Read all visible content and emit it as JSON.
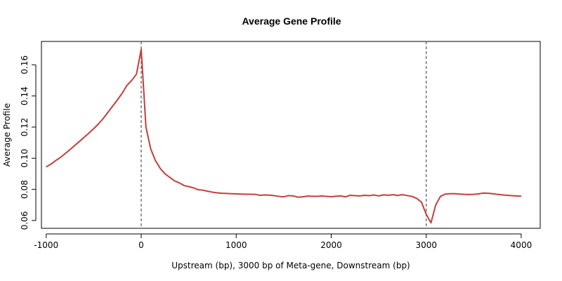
{
  "chart_data": {
    "type": "line",
    "title": "Average Gene Profile",
    "xlabel": "Upstream (bp), 3000 bp of Meta-gene, Downstream (bp)",
    "ylabel": "Average Profile",
    "xlim": [
      -1050,
      4200
    ],
    "ylim": [
      0.055,
      0.175
    ],
    "x_ticks": [
      -1000,
      0,
      1000,
      2000,
      3000,
      4000
    ],
    "x_tick_labels": [
      "-1000",
      "0",
      "1000",
      "2000",
      "3000",
      "4000"
    ],
    "y_ticks": [
      0.06,
      0.08,
      0.1,
      0.12,
      0.14,
      0.16
    ],
    "y_tick_labels": [
      "0.06",
      "0.08",
      "0.10",
      "0.12",
      "0.14",
      "0.16"
    ],
    "vlines": [
      0,
      3000
    ],
    "line_color": "#c0403c",
    "vline_color": "#555555",
    "grid": false,
    "series": [
      {
        "x": [
          -1000,
          -950,
          -900,
          -850,
          -800,
          -750,
          -700,
          -650,
          -600,
          -550,
          -500,
          -450,
          -400,
          -350,
          -300,
          -250,
          -200,
          -150,
          -100,
          -50,
          0,
          50,
          100,
          150,
          200,
          250,
          300,
          350,
          400,
          450,
          500,
          550,
          600,
          650,
          700,
          750,
          800,
          850,
          900,
          950,
          1000,
          1050,
          1100,
          1150,
          1200,
          1250,
          1300,
          1350,
          1400,
          1450,
          1500,
          1550,
          1600,
          1650,
          1700,
          1750,
          1800,
          1850,
          1900,
          1950,
          2000,
          2050,
          2100,
          2150,
          2200,
          2250,
          2300,
          2350,
          2400,
          2450,
          2500,
          2550,
          2600,
          2650,
          2700,
          2750,
          2800,
          2850,
          2900,
          2950,
          3000,
          3050,
          3100,
          3150,
          3200,
          3250,
          3300,
          3350,
          3400,
          3450,
          3500,
          3550,
          3600,
          3650,
          3700,
          3750,
          3800,
          3850,
          3900,
          3950,
          4000
        ],
        "y": [
          0.0945,
          0.0962,
          0.0985,
          0.1005,
          0.103,
          0.1055,
          0.1082,
          0.1108,
          0.1135,
          0.1162,
          0.119,
          0.122,
          0.1255,
          0.1295,
          0.1335,
          0.1375,
          0.1418,
          0.1468,
          0.15,
          0.154,
          0.17,
          0.12,
          0.106,
          0.0985,
          0.0935,
          0.09,
          0.0878,
          0.0855,
          0.0842,
          0.0825,
          0.0818,
          0.081,
          0.0798,
          0.0795,
          0.0788,
          0.0782,
          0.0778,
          0.0775,
          0.0774,
          0.0772,
          0.0771,
          0.077,
          0.0769,
          0.0769,
          0.0768,
          0.0762,
          0.0764,
          0.0763,
          0.076,
          0.0755,
          0.0752,
          0.076,
          0.0758,
          0.075,
          0.0752,
          0.0757,
          0.0756,
          0.0755,
          0.0758,
          0.0755,
          0.0753,
          0.0756,
          0.0758,
          0.0752,
          0.0762,
          0.076,
          0.0758,
          0.0762,
          0.076,
          0.0764,
          0.0758,
          0.0765,
          0.0762,
          0.0766,
          0.0761,
          0.0766,
          0.076,
          0.0755,
          0.0742,
          0.0718,
          0.064,
          0.0585,
          0.07,
          0.0755,
          0.077,
          0.0772,
          0.0772,
          0.077,
          0.0768,
          0.0767,
          0.0768,
          0.0771,
          0.0776,
          0.0775,
          0.0772,
          0.0768,
          0.0765,
          0.0762,
          0.076,
          0.0758,
          0.0756
        ]
      }
    ]
  }
}
